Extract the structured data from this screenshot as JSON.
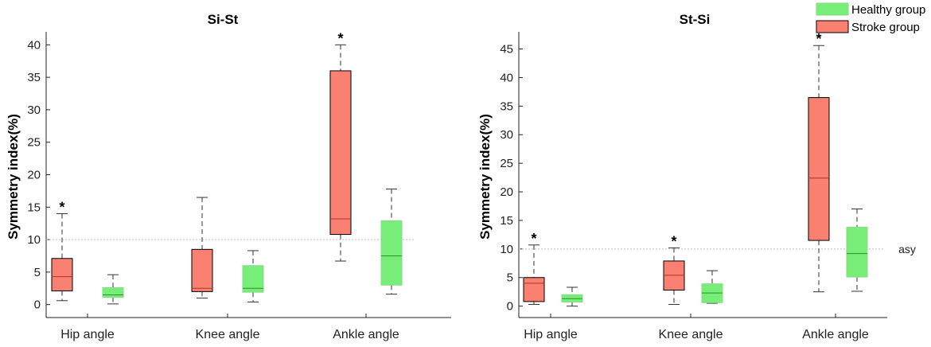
{
  "chart_data": [
    {
      "type": "box",
      "title": "Si-St",
      "ylabel": "Symmetry index(%)",
      "categories": [
        "Hip angle",
        "Knee angle",
        "Ankle angle"
      ],
      "ylim": [
        -2,
        42
      ],
      "yticks": [
        0,
        5,
        10,
        15,
        20,
        25,
        30,
        35,
        40
      ],
      "reference_line": {
        "y": 10,
        "style": "dotted"
      },
      "series": [
        {
          "name": "Stroke group",
          "color": "#fa8072",
          "boxes": [
            {
              "min": 0.6,
              "q1": 2.1,
              "median": 4.3,
              "q3": 7.1,
              "max": 14.0,
              "significant": true
            },
            {
              "min": 1.0,
              "q1": 2.0,
              "median": 2.5,
              "q3": 8.5,
              "max": 16.5,
              "significant": false
            },
            {
              "min": 6.7,
              "q1": 10.8,
              "median": 13.2,
              "q3": 36.0,
              "max": 40.0,
              "significant": true
            }
          ]
        },
        {
          "name": "Healthy group",
          "color": "#77ee77",
          "boxes": [
            {
              "min": 0.1,
              "q1": 1.1,
              "median": 1.5,
              "q3": 2.6,
              "max": 4.6
            },
            {
              "min": 0.4,
              "q1": 1.9,
              "median": 2.5,
              "q3": 6.0,
              "max": 8.3
            },
            {
              "min": 1.6,
              "q1": 3.0,
              "median": 7.5,
              "q3": 12.9,
              "max": 17.8
            }
          ]
        }
      ]
    },
    {
      "type": "box",
      "title": "St-Si",
      "ylabel": "Symmetry index(%)",
      "categories": [
        "Hip angle",
        "Knee angle",
        "Ankle angle"
      ],
      "ylim": [
        -2,
        48
      ],
      "yticks": [
        0,
        5,
        10,
        15,
        20,
        25,
        30,
        35,
        40,
        45
      ],
      "reference_line": {
        "y": 10,
        "style": "dotted",
        "label": "asy"
      },
      "legend": {
        "position": "top-right",
        "entries": [
          "Healthy group",
          "Stroke group"
        ]
      },
      "series": [
        {
          "name": "Stroke group",
          "color": "#fa8072",
          "boxes": [
            {
              "min": 0.3,
              "q1": 0.8,
              "median": 4.0,
              "q3": 5.0,
              "max": 10.7,
              "significant": true
            },
            {
              "min": 0.3,
              "q1": 2.8,
              "median": 5.4,
              "q3": 7.9,
              "max": 10.2,
              "significant": true
            },
            {
              "min": 2.5,
              "q1": 11.5,
              "median": 22.4,
              "q3": 36.5,
              "max": 45.6,
              "significant": true
            }
          ]
        },
        {
          "name": "Healthy group",
          "color": "#77ee77",
          "boxes": [
            {
              "min": 0.0,
              "q1": 0.7,
              "median": 1.3,
              "q3": 2.0,
              "max": 3.3
            },
            {
              "min": 0.5,
              "q1": 0.6,
              "median": 2.3,
              "q3": 3.9,
              "max": 6.2
            },
            {
              "min": 2.6,
              "q1": 5.1,
              "median": 9.2,
              "q3": 13.8,
              "max": 17.0
            }
          ]
        }
      ]
    }
  ],
  "significance_marker": "*"
}
